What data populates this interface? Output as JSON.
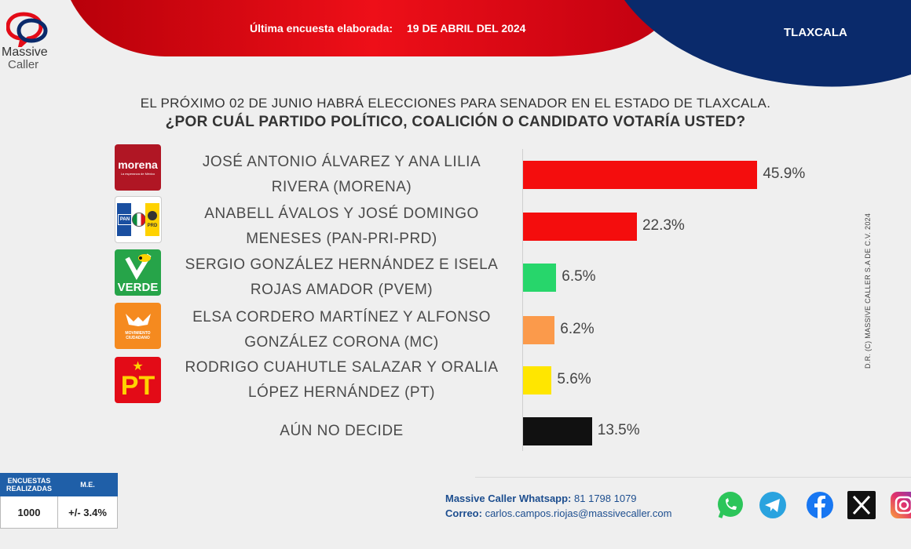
{
  "header": {
    "survey_label": "Última encuesta elaborada:",
    "survey_date": "19 DE ABRIL DEL 2024",
    "state": "TLAXCALA",
    "colors": {
      "red": "#e30b17",
      "blue": "#0a2a6b"
    }
  },
  "brand": {
    "line1": "Massive",
    "line2": "Caller"
  },
  "question": {
    "line1": "EL PRÓXIMO 02 DE JUNIO HABRÁ ELECCIONES PARA SENADOR EN EL ESTADO DE TLAXCALA.",
    "line2": "¿POR CUÁL PARTIDO POLÍTICO, COALICIÓN O CANDIDATO VOTARÍA USTED?"
  },
  "logos": {
    "morena": {
      "name": "morena",
      "tagline": "La esperanza de México"
    },
    "pan_pri_prd": {
      "pan": "PAN",
      "prd": "PRD"
    },
    "verde": {
      "name": "VERDE"
    },
    "mc": {
      "line1": "MOVIMIENTO",
      "line2": "CIUDADANO"
    },
    "pt": {
      "name": "PT"
    }
  },
  "chart_data": {
    "type": "bar",
    "orientation": "horizontal",
    "categories": [
      "JOSÉ ANTONIO ÁLVAREZ Y ANA LILIA RIVERA (MORENA)",
      "ANABELL ÁVALOS Y JOSÉ DOMINGO MENESES (PAN-PRI-PRD)",
      "SERGIO GONZÁLEZ HERNÁNDEZ  E ISELA ROJAS AMADOR (PVEM)",
      "ELSA CORDERO MARTÍNEZ Y ALFONSO GONZÁLEZ CORONA (MC)",
      "RODRIGO CUAHUTLE SALAZAR Y ORALIA LÓPEZ HERNÁNDEZ (PT)",
      "AÚN NO DECIDE"
    ],
    "label_lines": [
      [
        "JOSÉ ANTONIO ÁLVAREZ Y ANA LILIA",
        "RIVERA (MORENA)"
      ],
      [
        "ANABELL ÁVALOS Y JOSÉ DOMINGO",
        "MENESES (PAN-PRI-PRD)"
      ],
      [
        "SERGIO GONZÁLEZ HERNÁNDEZ  E ISELA",
        "ROJAS AMADOR (PVEM)"
      ],
      [
        "ELSA CORDERO MARTÍNEZ Y ALFONSO",
        "GONZÁLEZ CORONA (MC)"
      ],
      [
        "RODRIGO CUAHUTLE SALAZAR Y ORALIA",
        "LÓPEZ HERNÁNDEZ (PT)"
      ],
      [
        "AÚN NO DECIDE"
      ]
    ],
    "values": [
      45.9,
      22.3,
      6.5,
      6.2,
      5.6,
      13.5
    ],
    "value_labels": [
      "45.9%",
      "22.3%",
      "6.5%",
      "6.2%",
      "5.6%",
      "13.5%"
    ],
    "colors": [
      "#f40d0d",
      "#f40d0d",
      "#27d66b",
      "#fb9a4b",
      "#ffe600",
      "#111111"
    ],
    "xlim": [
      0,
      100
    ],
    "grid": false
  },
  "side_note": "D.R. (C) MASSIVE CALLER S.A DE C.V. 2024",
  "stats_table": {
    "headers": [
      "ENCUESTAS REALIZADAS",
      "M.E."
    ],
    "values": [
      "1000",
      "+/- 3.4%"
    ]
  },
  "contact": {
    "whatsapp_label": "Massive Caller Whatsapp:",
    "whatsapp_value": "81 1798 1079",
    "email_label": "Correo:",
    "email_value": "carlos.campos.riojas@massivecaller.com"
  },
  "social_icons": [
    "whatsapp-icon",
    "telegram-icon",
    "facebook-icon",
    "x-icon",
    "instagram-icon"
  ]
}
